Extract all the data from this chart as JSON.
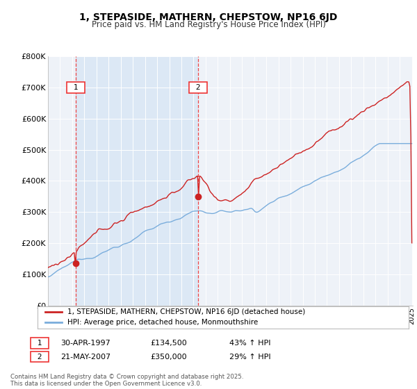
{
  "title": "1, STEPASIDE, MATHERN, CHEPSTOW, NP16 6JD",
  "subtitle": "Price paid vs. HM Land Registry's House Price Index (HPI)",
  "sale1_label": "30-APR-1997",
  "sale1_price": 134500,
  "sale1_year": 1997.29,
  "sale1_pct": "43% ↑ HPI",
  "sale2_label": "21-MAY-2007",
  "sale2_price": 350000,
  "sale2_year": 2007.38,
  "sale2_pct": "29% ↑ HPI",
  "legend_line1": "1, STEPASIDE, MATHERN, CHEPSTOW, NP16 6JD (detached house)",
  "legend_line2": "HPI: Average price, detached house, Monmouthshire",
  "footnote": "Contains HM Land Registry data © Crown copyright and database right 2025.\nThis data is licensed under the Open Government Licence v3.0.",
  "hpi_color": "#7aaddc",
  "price_color": "#cc2222",
  "vline_color": "#ee3333",
  "shade_color": "#dce8f5",
  "background_color": "#eef2f8",
  "grid_color": "#ffffff",
  "ylim": [
    0,
    800000
  ],
  "yticks": [
    0,
    100000,
    200000,
    300000,
    400000,
    500000,
    600000,
    700000,
    800000
  ],
  "xstart_year": 1995,
  "xend_year": 2025
}
